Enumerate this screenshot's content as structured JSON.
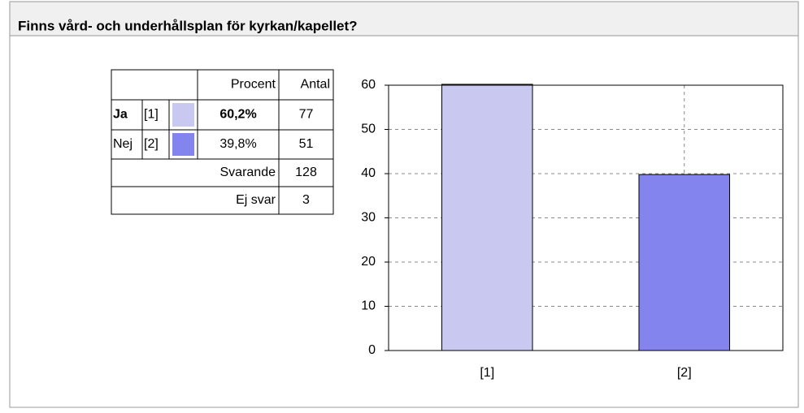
{
  "header": {
    "title": "Finns vård- och underhållsplan för kyrkan/kapellet?"
  },
  "table": {
    "columns": [
      "Procent",
      "Antal"
    ],
    "rows": [
      {
        "label": "Ja",
        "code": "[1]",
        "percent": "60,2%",
        "count": "77"
      },
      {
        "label": "Nej",
        "code": "[2]",
        "percent": "39,8%",
        "count": "51"
      }
    ],
    "totals": [
      {
        "label": "Svarande",
        "count": "128"
      },
      {
        "label": "Ej svar",
        "count": "3"
      }
    ]
  },
  "chart_data": {
    "type": "bar",
    "categories": [
      "[1]",
      "[2]"
    ],
    "values": [
      60.2,
      39.8
    ],
    "colors": [
      "#c8c8f0",
      "#8484ee"
    ],
    "ylim": [
      0,
      60
    ],
    "yticks": [
      0,
      10,
      20,
      30,
      40,
      50,
      60
    ],
    "grid": true
  }
}
